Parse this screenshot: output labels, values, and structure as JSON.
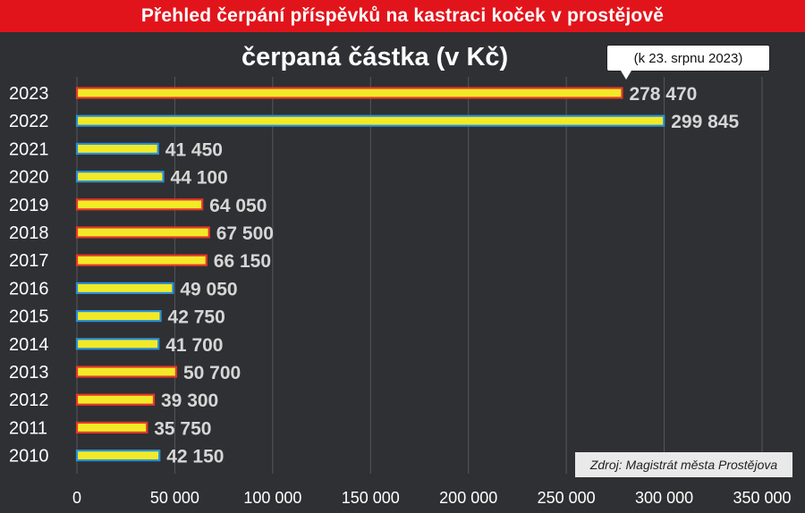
{
  "header": {
    "title": "Přehled čerpání příspěvků na kastraci koček v prostějově"
  },
  "note": "(k 23. srpnu 2023)",
  "source": "Zdroj: Magistrát města Prostějova",
  "colors": {
    "banner": "#e2141b",
    "background": "#2f3033",
    "bar_fill": "#f2ea27",
    "bar_edge_red": "#e8372a",
    "bar_edge_blue": "#2a8fd6"
  },
  "chart_data": {
    "type": "bar",
    "orientation": "horizontal",
    "title": "čerpaná částka (v Kč)",
    "categories": [
      "2023",
      "2022",
      "2021",
      "2020",
      "2019",
      "2018",
      "2017",
      "2016",
      "2015",
      "2014",
      "2013",
      "2012",
      "2011",
      "2010"
    ],
    "values": [
      278470,
      299845,
      41450,
      44100,
      64050,
      67500,
      66150,
      49050,
      42750,
      41700,
      50700,
      39300,
      35750,
      42150
    ],
    "value_labels": [
      "278 470",
      "299 845",
      "41 450",
      "44 100",
      "64 050",
      "67 500",
      "66 150",
      "49 050",
      "42 750",
      "41 700",
      "50 700",
      "39 300",
      "35 750",
      "42 150"
    ],
    "bar_edges": [
      "red",
      "blue",
      "blue",
      "blue",
      "red",
      "red",
      "red",
      "blue",
      "blue",
      "blue",
      "red",
      "red",
      "red",
      "blue"
    ],
    "xlim": [
      0,
      350000
    ],
    "xticks": [
      0,
      50000,
      100000,
      150000,
      200000,
      250000,
      300000,
      350000
    ],
    "xtick_labels": [
      "0",
      "50 000",
      "100 000",
      "150 000",
      "200 000",
      "250 000",
      "300 000",
      "350 000"
    ],
    "grid": "vertical",
    "xlabel": "",
    "ylabel": ""
  }
}
